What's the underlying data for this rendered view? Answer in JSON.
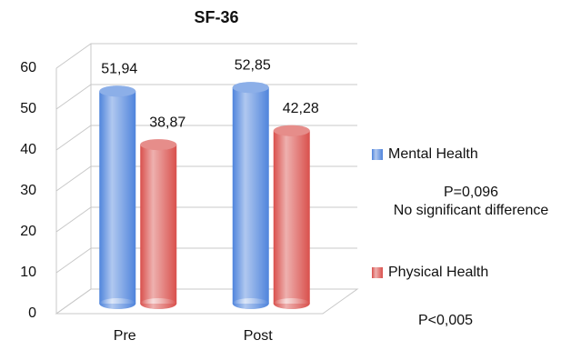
{
  "chart_data": {
    "type": "bar",
    "title": "SF-36",
    "categories": [
      "Pre",
      "Post"
    ],
    "series": [
      {
        "name": "Mental Health",
        "color": "#4f84dc",
        "values": [
          51.94,
          52.85
        ],
        "value_labels": [
          "51,94",
          "52,85"
        ]
      },
      {
        "name": "Physical Health",
        "color": "#d9504c",
        "values": [
          38.87,
          42.28
        ],
        "value_labels": [
          "38,87",
          "42,28"
        ]
      }
    ],
    "ylim": [
      0,
      60
    ],
    "yticks": [
      0,
      10,
      20,
      30,
      40,
      50,
      60
    ],
    "grid": true,
    "annotations": [
      "P=0,096",
      "No significant difference",
      "P<0,005"
    ]
  }
}
